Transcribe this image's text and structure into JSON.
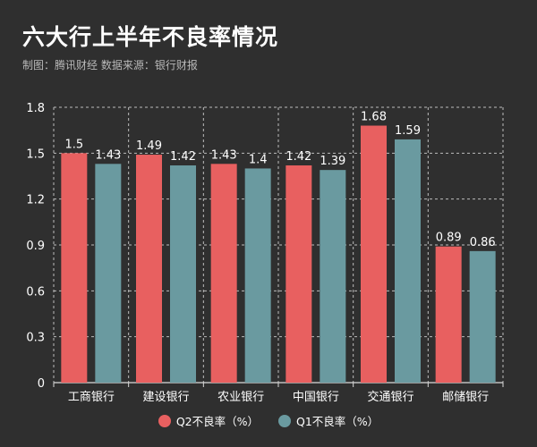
{
  "header": {
    "title": "六大行上半年不良率情况",
    "subtitle": "制图：腾讯财经  数据来源：银行财报"
  },
  "colors": {
    "background": "#2f2f2f",
    "q2": "#e86060",
    "q1": "#6a9aa0",
    "grid": "#bdbdbd",
    "axis": "#d9d9d9"
  },
  "chart_data": {
    "type": "bar",
    "categories": [
      "工商银行",
      "建设银行",
      "农业银行",
      "中国银行",
      "交通银行",
      "邮储银行"
    ],
    "series": [
      {
        "name": "Q2不良率（%）",
        "values": [
          1.5,
          1.49,
          1.43,
          1.42,
          1.68,
          0.89
        ],
        "labels": [
          "1.5",
          "1.49",
          "1.43",
          "1.42",
          "1.68",
          "0.89"
        ]
      },
      {
        "name": "Q1不良率（%）",
        "values": [
          1.43,
          1.42,
          1.4,
          1.39,
          1.59,
          0.86
        ],
        "labels": [
          "1.43",
          "1.42",
          "1.4",
          "1.39",
          "1.59",
          "0.86"
        ]
      }
    ],
    "yticks": [
      "0",
      "0.3",
      "0.6",
      "0.9",
      "1.2",
      "1.5",
      "1.8"
    ],
    "ylim": [
      0,
      1.8
    ],
    "grid": true,
    "legend_position": "bottom-center"
  }
}
